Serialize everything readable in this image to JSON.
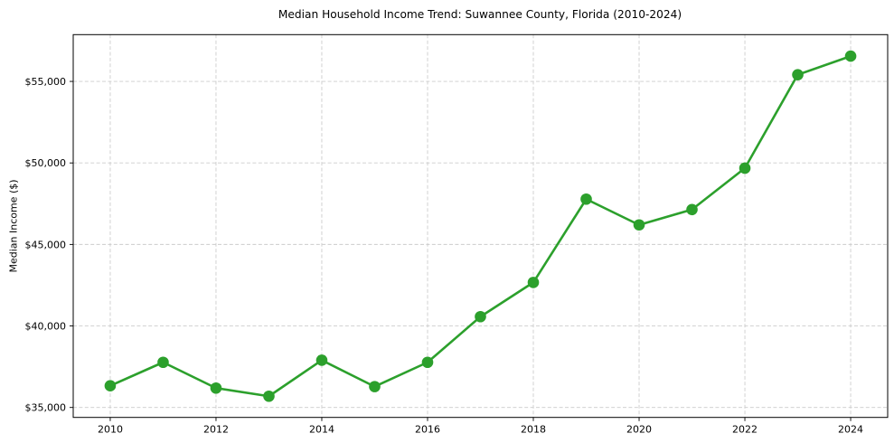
{
  "chart_data": {
    "type": "line",
    "title": "Median Household Income Trend: Suwannee County, Florida (2010-2024)",
    "xlabel": "",
    "ylabel": "Median Income ($)",
    "series": [
      {
        "name": "Median Household Income",
        "x": [
          2010,
          2011,
          2012,
          2013,
          2014,
          2015,
          2016,
          2017,
          2018,
          2019,
          2020,
          2021,
          2022,
          2023,
          2024
        ],
        "values": [
          36330,
          37770,
          36190,
          35690,
          37900,
          36280,
          37770,
          40570,
          42670,
          47780,
          46200,
          47140,
          49680,
          55410,
          56550
        ]
      }
    ],
    "xticks": [
      2010,
      2012,
      2014,
      2016,
      2018,
      2020,
      2022,
      2024
    ],
    "xtick_labels": [
      "2010",
      "2012",
      "2014",
      "2016",
      "2018",
      "2020",
      "2022",
      "2024"
    ],
    "yticks": [
      35000,
      40000,
      45000,
      50000,
      55000
    ],
    "ytick_labels": [
      "$35,000",
      "$40,000",
      "$45,000",
      "$50,000",
      "$55,000"
    ],
    "xlim": [
      2009.3,
      2024.7
    ],
    "ylim": [
      34390,
      57870
    ],
    "grid": "dashed-both-axes",
    "legend_position": "none",
    "line_color": "#2ca02c",
    "marker": "circle",
    "grid_color": "#cccccc",
    "axis_color": "#000000",
    "text_color": "#000000",
    "background_color": "#ffffff"
  }
}
